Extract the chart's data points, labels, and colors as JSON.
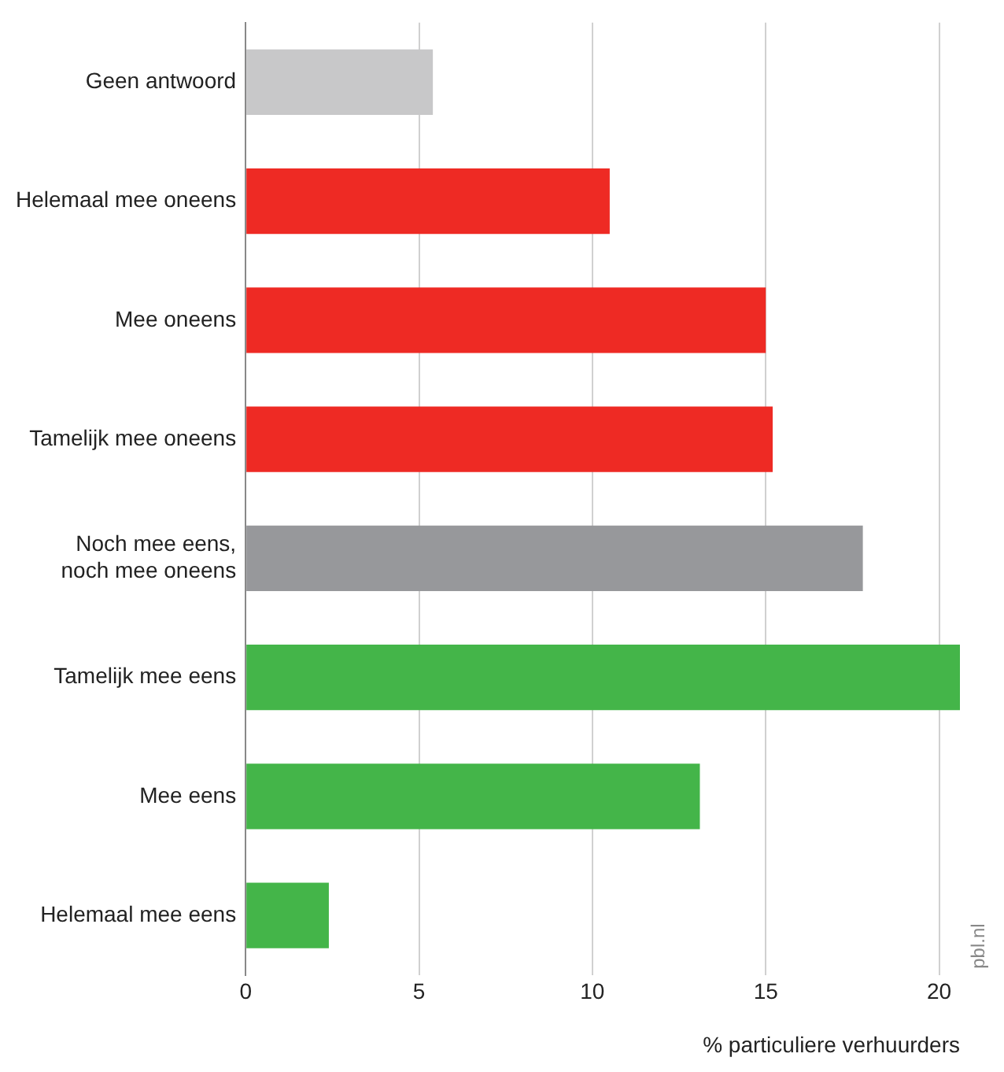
{
  "chart_data": {
    "type": "bar",
    "orientation": "horizontal",
    "xlabel": "% particuliere verhuurders",
    "categories": [
      "Geen antwoord",
      "Helemaal mee oneens",
      "Mee oneens",
      "Tamelijk mee oneens",
      "Noch mee eens,\nnoch mee oneens",
      "Tamelijk mee eens",
      "Mee eens",
      "Helemaal mee eens"
    ],
    "values": [
      5.4,
      10.5,
      15.0,
      15.2,
      17.8,
      20.6,
      13.1,
      2.4
    ],
    "colors": [
      "#c8c8c9",
      "#ee2a24",
      "#ee2a24",
      "#ee2a24",
      "#97989b",
      "#44b549",
      "#44b549",
      "#44b549"
    ],
    "xlim": [
      0,
      20.6
    ],
    "xticks": [
      0,
      5,
      10,
      15,
      20
    ],
    "grid": "x",
    "legend": false,
    "annotations": [
      "pbl.nl"
    ]
  }
}
